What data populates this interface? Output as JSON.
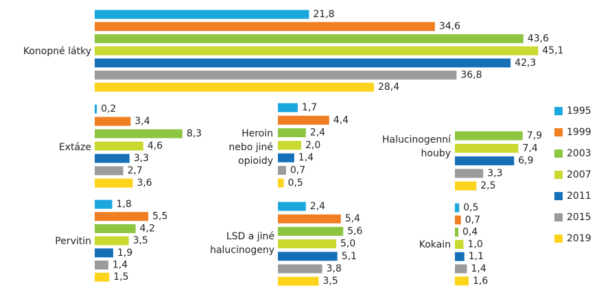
{
  "legend": {
    "series": [
      {
        "name": "1995",
        "color": "#1ba6dd"
      },
      {
        "name": "1999",
        "color": "#f07e22"
      },
      {
        "name": "2003",
        "color": "#8cc540"
      },
      {
        "name": "2007",
        "color": "#c9d930"
      },
      {
        "name": "2011",
        "color": "#1570b8"
      },
      {
        "name": "2015",
        "color": "#9b9b9b"
      },
      {
        "name": "2019",
        "color": "#fcd41c"
      }
    ]
  },
  "chart_data": [
    {
      "type": "bar",
      "label": [
        "Konopné látky"
      ],
      "values": [
        21.8,
        34.6,
        43.6,
        45.1,
        42.3,
        36.8,
        28.4
      ],
      "value_labels": [
        "21,8",
        "34,6",
        "43,6",
        "45,1",
        "42,3",
        "36,8",
        "28,4"
      ]
    },
    {
      "type": "bar",
      "label": [
        "Extáze"
      ],
      "values": [
        0.2,
        3.4,
        8.3,
        4.6,
        3.3,
        2.7,
        3.6
      ],
      "value_labels": [
        "0,2",
        "3,4",
        "8,3",
        "4,6",
        "3,3",
        "2,7",
        "3,6"
      ]
    },
    {
      "type": "bar",
      "label": [
        "Pervitin"
      ],
      "values": [
        1.8,
        5.5,
        4.2,
        3.5,
        1.9,
        1.4,
        1.5
      ],
      "value_labels": [
        "1,8",
        "5,5",
        "4,2",
        "3,5",
        "1,9",
        "1,4",
        "1,5"
      ]
    },
    {
      "type": "bar",
      "label": [
        "Heroin",
        "nebo jiné",
        "opioidy"
      ],
      "values": [
        1.7,
        4.4,
        2.4,
        2.0,
        1.4,
        0.7,
        0.5
      ],
      "value_labels": [
        "1,7",
        "4,4",
        "2,4",
        "2,0",
        "1,4",
        "0,7",
        "0,5"
      ]
    },
    {
      "type": "bar",
      "label": [
        "LSD a jiné",
        "halucinogeny"
      ],
      "values": [
        2.4,
        5.4,
        5.6,
        5.0,
        5.1,
        3.8,
        3.5
      ],
      "value_labels": [
        "2,4",
        "5,4",
        "5,6",
        "5,0",
        "5,1",
        "3,8",
        "3,5"
      ]
    },
    {
      "type": "bar",
      "label": [
        "Halucinogenní",
        "houby"
      ],
      "values": [
        null,
        null,
        7.9,
        7.4,
        6.9,
        3.3,
        2.5
      ],
      "value_labels": [
        null,
        null,
        "7,9",
        "7,4",
        "6,9",
        "3,3",
        "2,5"
      ]
    },
    {
      "type": "bar",
      "label": [
        "Kokain"
      ],
      "values": [
        0.5,
        0.7,
        0.4,
        1.0,
        1.1,
        1.4,
        1.6
      ],
      "value_labels": [
        "0,5",
        "0,7",
        "0,4",
        "1,0",
        "1,1",
        "1,4",
        "1,6"
      ]
    }
  ]
}
